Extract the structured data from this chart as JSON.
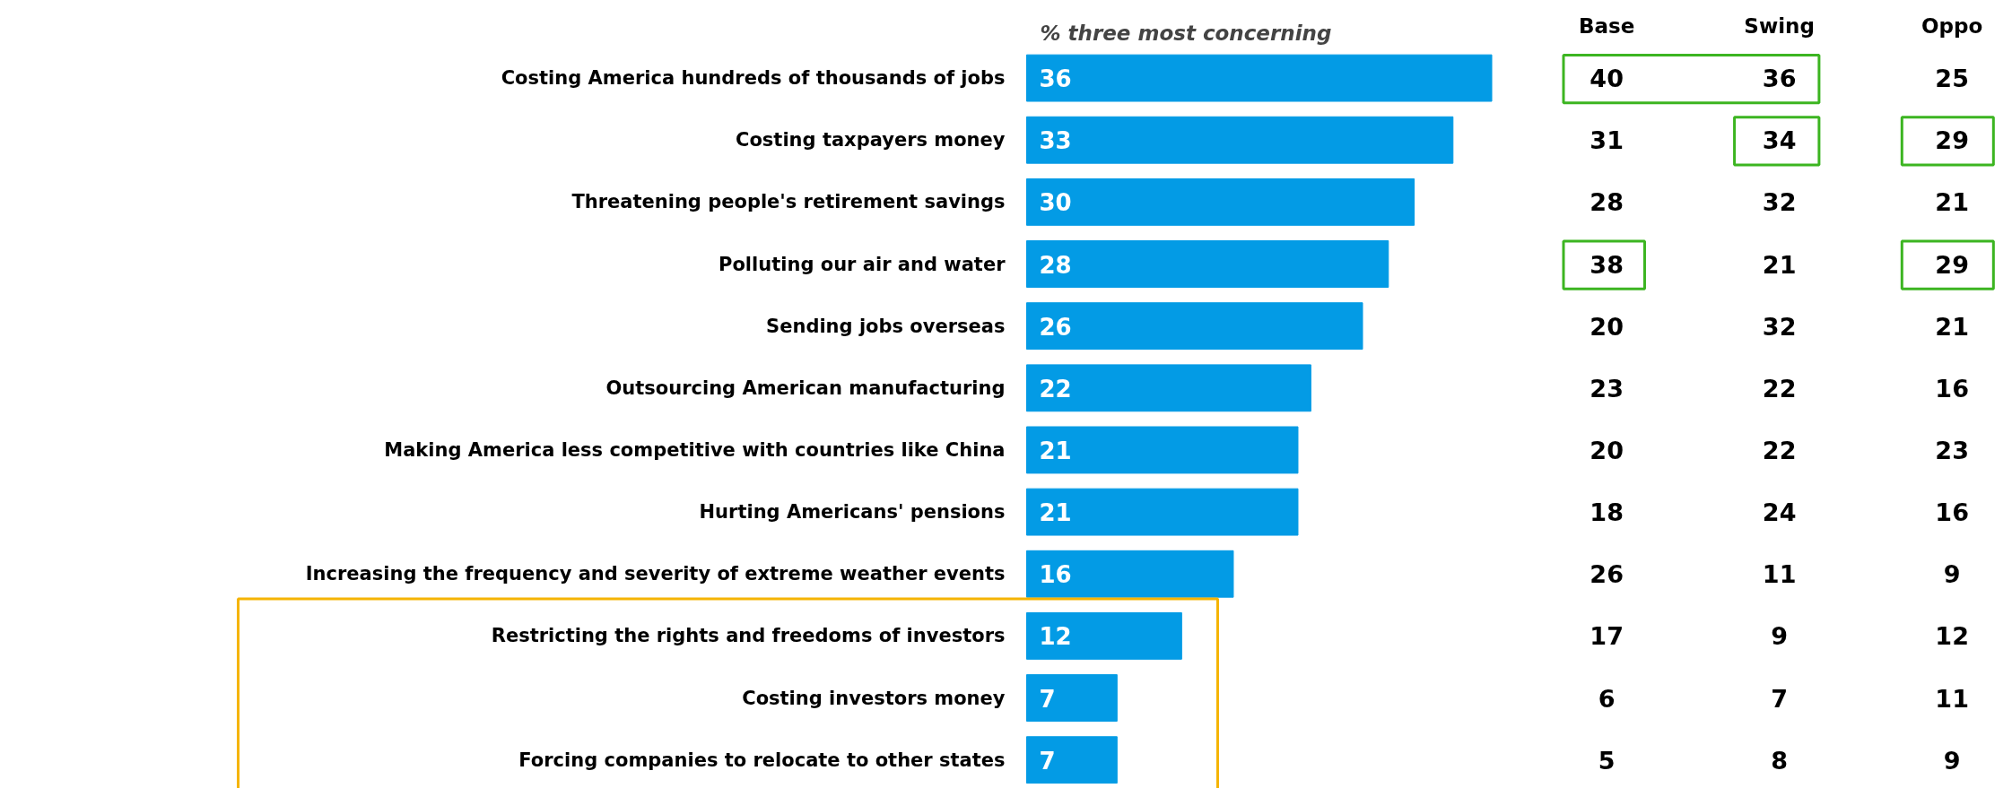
{
  "chart_data": [
    {
      "type": "bar",
      "orientation": "horizontal",
      "title": "% three most concerning",
      "categories": [
        "Costing America hundreds of thousands of jobs",
        "Costing taxpayers money",
        "Threatening people's retirement savings",
        "Polluting our air and water",
        "Sending jobs overseas",
        "Outsourcing American manufacturing",
        "Making America less competitive with countries like China",
        "Hurting Americans' pensions",
        "Increasing the frequency and severity of extreme weather events",
        "Restricting the rights and freedoms of investors",
        "Costing investors money",
        "Forcing companies to relocate to other states"
      ],
      "values": [
        36,
        33,
        30,
        28,
        26,
        22,
        21,
        21,
        16,
        12,
        7,
        7
      ],
      "color": "#039be5",
      "data_labels": true
    },
    {
      "type": "other",
      "categories": [
        "Base",
        "Swing",
        "Oppo"
      ],
      "annotations": [
        "40",
        "36",
        "25",
        "31",
        "34",
        "29",
        "28",
        "32",
        "21",
        "38",
        "21",
        "29",
        "20",
        "32",
        "21",
        "23",
        "22",
        "16",
        "20",
        "22",
        "23",
        "18",
        "24",
        "16",
        "26",
        "11",
        "9",
        "17",
        "9",
        "12",
        "6",
        "7",
        "11",
        "5",
        "8",
        "9"
      ]
    }
  ]
}
